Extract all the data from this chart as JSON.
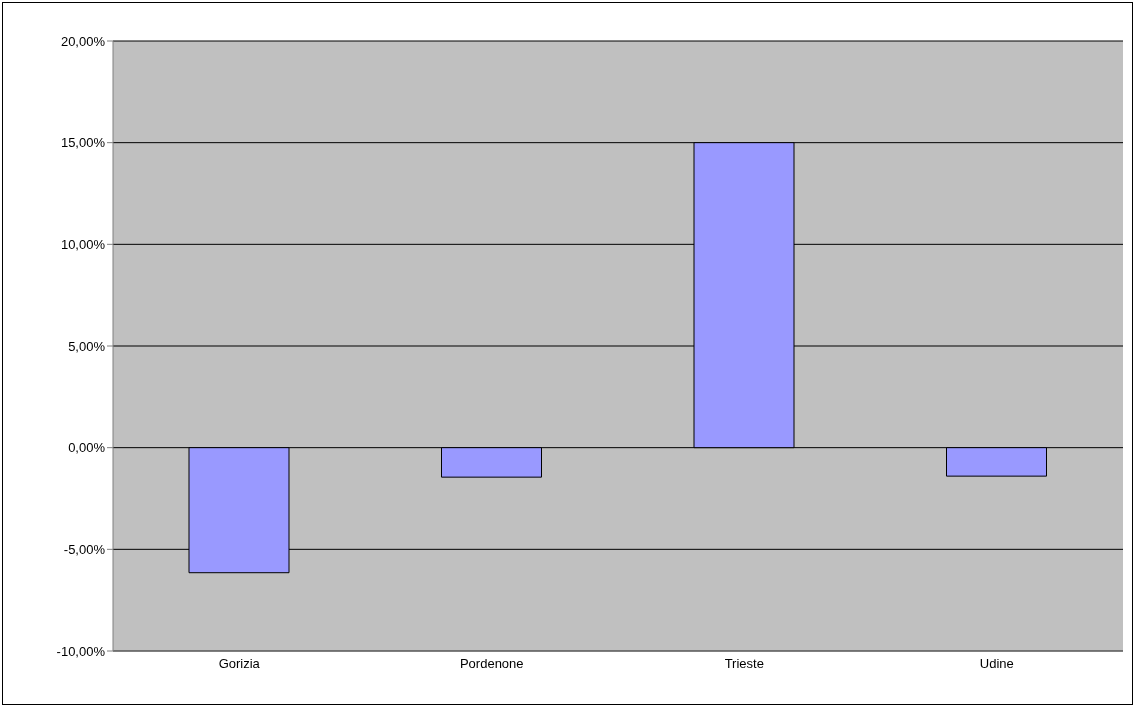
{
  "chart_data": {
    "type": "bar",
    "categories": [
      "Gorizia",
      "Pordenone",
      "Trieste",
      "Udine"
    ],
    "values": [
      -6.15,
      -1.45,
      15.0,
      -1.4
    ],
    "color": "#9999ff",
    "ylim": [
      -10,
      20
    ],
    "yticks": [
      {
        "value": -10,
        "label": "-10,00%"
      },
      {
        "value": -5,
        "label": "-5,00%"
      },
      {
        "value": 0,
        "label": "0,00%"
      },
      {
        "value": 5,
        "label": "5,00%"
      },
      {
        "value": 10,
        "label": "10,00%"
      },
      {
        "value": 15,
        "label": "15,00%"
      },
      {
        "value": 20,
        "label": "20,00%"
      }
    ],
    "grid": "y",
    "legend": false
  }
}
